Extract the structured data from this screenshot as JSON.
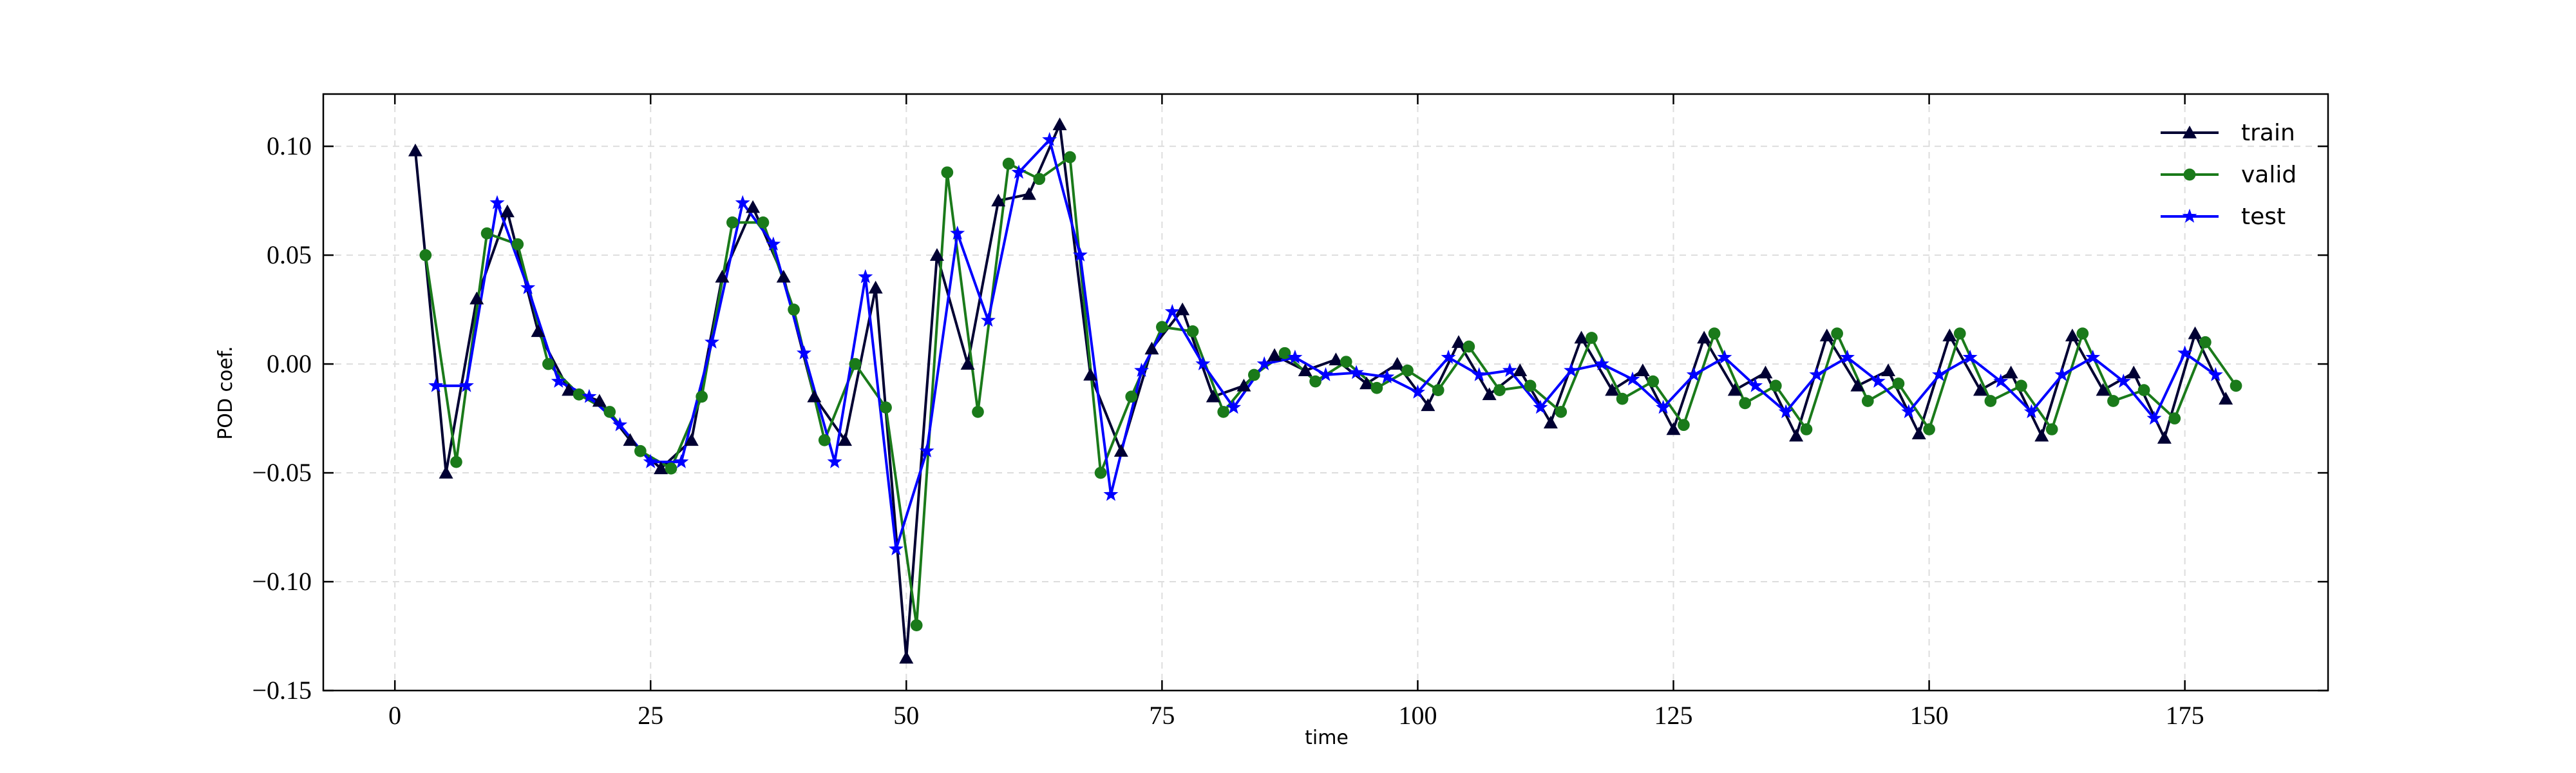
{
  "chart_data": {
    "type": "line",
    "xlabel": "time",
    "ylabel": "POD coef.",
    "xlim": [
      -7,
      189
    ],
    "ylim": [
      -0.15,
      0.124
    ],
    "xticks": [
      0,
      25,
      50,
      75,
      100,
      125,
      150,
      175
    ],
    "yticks": [
      {
        "value": -0.15,
        "label": "−0.15"
      },
      {
        "value": -0.1,
        "label": "−0.10"
      },
      {
        "value": -0.05,
        "label": "−0.05"
      },
      {
        "value": 0,
        "label": "0.00"
      },
      {
        "value": 0.05,
        "label": "0.05"
      },
      {
        "value": 0.1,
        "label": "0.10"
      }
    ],
    "grid": true,
    "legend": "upper right",
    "series": [
      {
        "name": "train",
        "color": "#000033",
        "marker": "triangle",
        "x": [
          2,
          5,
          8,
          11,
          14,
          17,
          20,
          23,
          26,
          29,
          32,
          35,
          38,
          41,
          44,
          47,
          50,
          53,
          56,
          59,
          62,
          65,
          68,
          71,
          74,
          77,
          80,
          83,
          86,
          89,
          92,
          95,
          98,
          101,
          104,
          107,
          110,
          113,
          116,
          119,
          122,
          125,
          128,
          131,
          134,
          137,
          140,
          143,
          146,
          149,
          152,
          155,
          158,
          161,
          164,
          167,
          170,
          173,
          176,
          179
        ],
        "values": [
          0.098,
          -0.05,
          0.03,
          0.07,
          0.015,
          -0.012,
          -0.017,
          -0.035,
          -0.048,
          -0.035,
          0.04,
          0.072,
          0.04,
          -0.015,
          -0.035,
          0.035,
          -0.135,
          0.05,
          0.0,
          0.075,
          0.078,
          0.11,
          -0.005,
          -0.04,
          0.007,
          0.025,
          -0.015,
          -0.01,
          0.004,
          -0.003,
          0.002,
          -0.009,
          0.0,
          -0.019,
          0.01,
          -0.014,
          -0.003,
          -0.027,
          0.012,
          -0.012,
          -0.003,
          -0.03,
          0.012,
          -0.012,
          -0.004,
          -0.033,
          0.013,
          -0.01,
          -0.003,
          -0.032,
          0.013,
          -0.012,
          -0.004,
          -0.033,
          0.013,
          -0.012,
          -0.004,
          -0.034,
          0.014,
          -0.016
        ]
      },
      {
        "name": "valid",
        "color": "#1a7a1a",
        "marker": "circle",
        "x": [
          3,
          6,
          9,
          12,
          15,
          18,
          21,
          24,
          27,
          30,
          33,
          36,
          39,
          42,
          45,
          48,
          51,
          54,
          57,
          60,
          63,
          66,
          69,
          72,
          75,
          78,
          81,
          84,
          87,
          90,
          93,
          96,
          99,
          102,
          105,
          108,
          111,
          114,
          117,
          120,
          123,
          126,
          129,
          132,
          135,
          138,
          141,
          144,
          147,
          150,
          153,
          156,
          159,
          162,
          165,
          168,
          171,
          174,
          177,
          180
        ],
        "values": [
          0.05,
          -0.045,
          0.06,
          0.055,
          0.0,
          -0.014,
          -0.022,
          -0.04,
          -0.048,
          -0.015,
          0.065,
          0.065,
          0.025,
          -0.035,
          0.0,
          -0.02,
          -0.12,
          0.088,
          -0.022,
          0.092,
          0.085,
          0.095,
          -0.05,
          -0.015,
          0.017,
          0.015,
          -0.022,
          -0.005,
          0.005,
          -0.008,
          0.001,
          -0.011,
          -0.003,
          -0.012,
          0.008,
          -0.012,
          -0.01,
          -0.022,
          0.012,
          -0.016,
          -0.008,
          -0.028,
          0.014,
          -0.018,
          -0.01,
          -0.03,
          0.014,
          -0.017,
          -0.009,
          -0.03,
          0.014,
          -0.017,
          -0.01,
          -0.03,
          0.014,
          -0.017,
          -0.012,
          -0.025,
          0.01,
          -0.01
        ]
      },
      {
        "name": "test",
        "color": "#0000ff",
        "marker": "star",
        "x": [
          4,
          7,
          10,
          13,
          16,
          19,
          22,
          25,
          28,
          31,
          34,
          37,
          40,
          43,
          46,
          49,
          52,
          55,
          58,
          61,
          64,
          67,
          70,
          73,
          76,
          79,
          82,
          85,
          88,
          91,
          94,
          97,
          100,
          103,
          106,
          109,
          112,
          115,
          118,
          121,
          124,
          127,
          130,
          133,
          136,
          139,
          142,
          145,
          148,
          151,
          154,
          157,
          160,
          163,
          166,
          169,
          172,
          175,
          178
        ],
        "values": [
          -0.01,
          -0.01,
          0.074,
          0.035,
          -0.008,
          -0.015,
          -0.028,
          -0.045,
          -0.045,
          0.01,
          0.074,
          0.055,
          0.005,
          -0.045,
          0.04,
          -0.085,
          -0.04,
          0.06,
          0.02,
          0.088,
          0.103,
          0.05,
          -0.06,
          -0.003,
          0.024,
          0.0,
          -0.02,
          0.0,
          0.003,
          -0.005,
          -0.004,
          -0.006,
          -0.013,
          0.003,
          -0.005,
          -0.003,
          -0.02,
          -0.003,
          0.0,
          -0.007,
          -0.02,
          -0.005,
          0.003,
          -0.01,
          -0.022,
          -0.005,
          0.003,
          -0.008,
          -0.022,
          -0.005,
          0.003,
          -0.008,
          -0.022,
          -0.005,
          0.003,
          -0.008,
          -0.025,
          0.005,
          -0.005
        ]
      }
    ]
  }
}
